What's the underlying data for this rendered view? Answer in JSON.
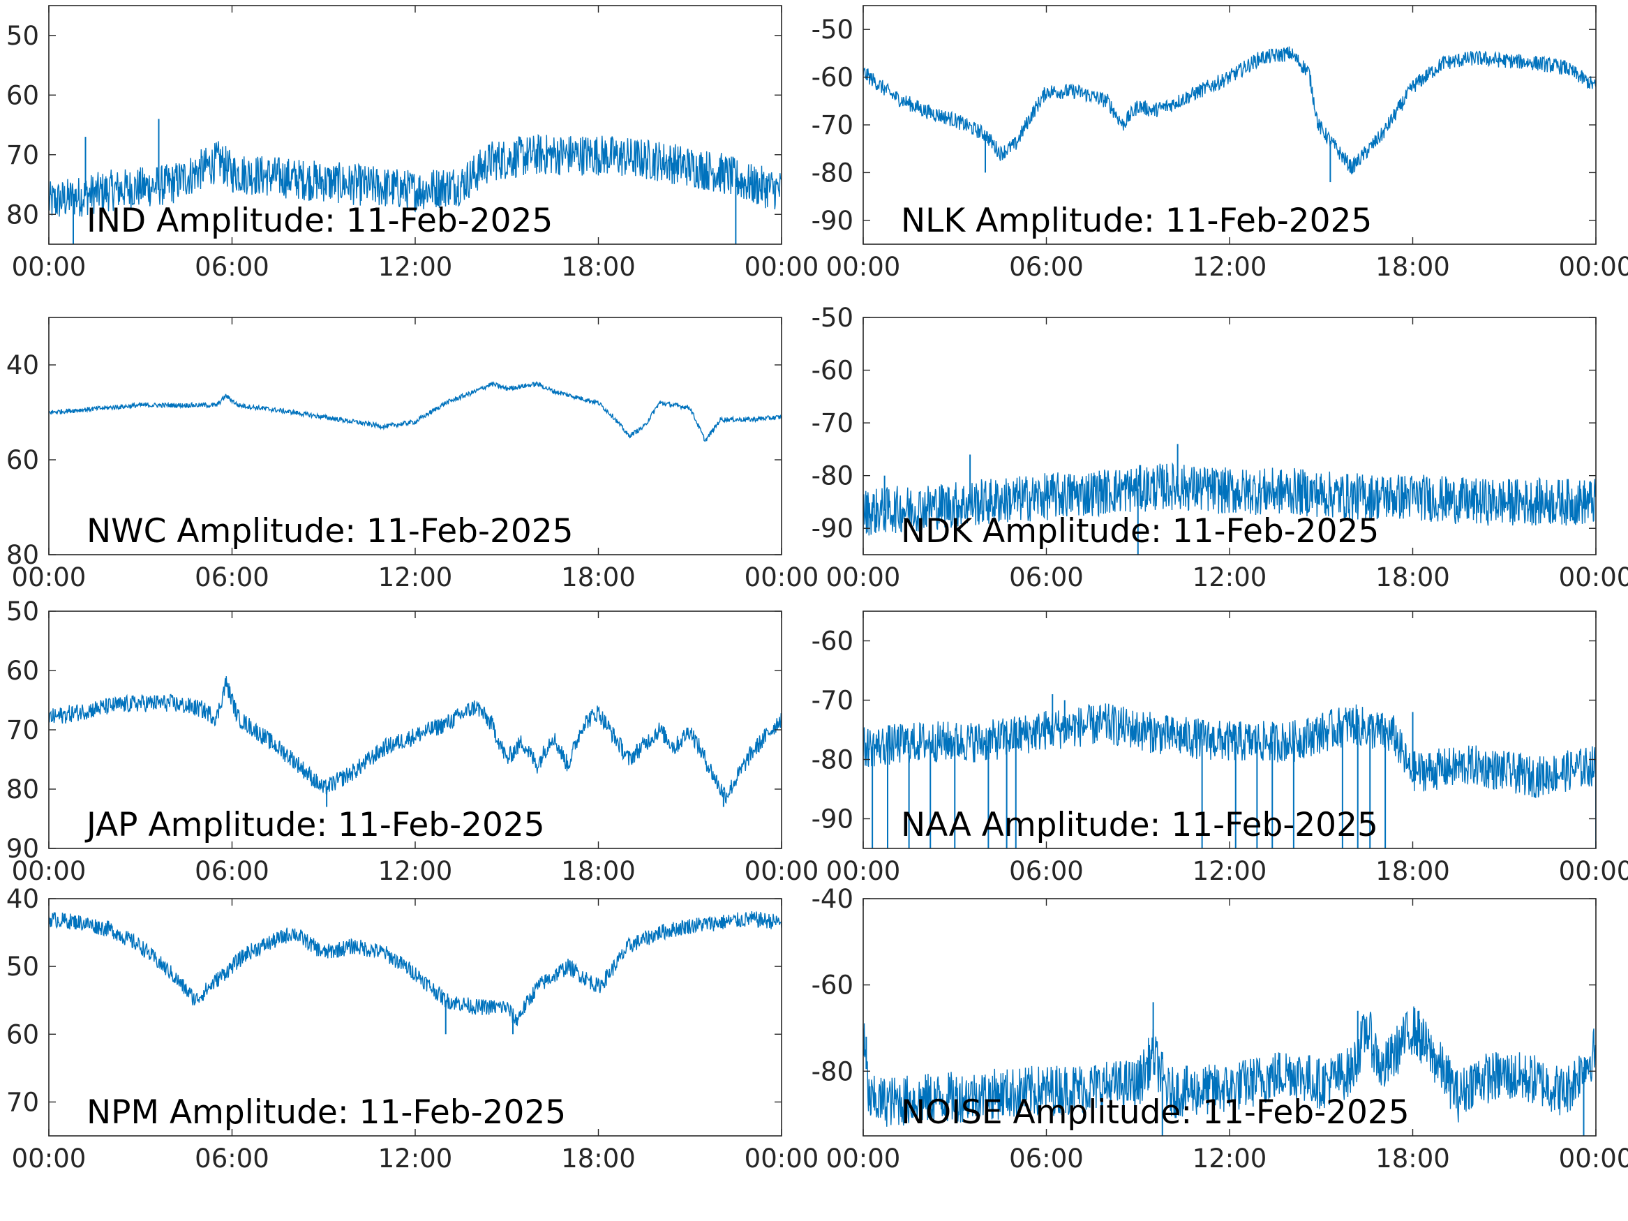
{
  "figure": {
    "line_color": "#0072BD",
    "axis_color": "#262626",
    "x_tick_labels": [
      "00:00",
      "06:00",
      "12:00",
      "18:00",
      "00:00"
    ]
  },
  "chart_data": [
    {
      "type": "line",
      "station": "IND",
      "title": "IND Amplitude: 11-Feb-2025",
      "xlabel": "",
      "ylabel": "",
      "x_unit": "hours",
      "xlim": [
        0,
        24
      ],
      "ylim": [
        -85,
        -45
      ],
      "y_tick_values": [
        -50,
        -60,
        -70,
        -80
      ],
      "y_tick_labels": [
        "50",
        "60",
        "70",
        "80"
      ],
      "noise": 3.5,
      "spikes": [
        [
          3.6,
          -64
        ],
        [
          1.2,
          -67
        ],
        [
          22.5,
          -86
        ],
        [
          0.8,
          -86
        ]
      ],
      "series": [
        {
          "x": [
            0,
            2,
            4,
            5.6,
            6,
            8,
            10,
            12,
            13.5,
            14.5,
            16,
            18,
            20,
            22,
            23,
            24
          ],
          "y": [
            -78,
            -76,
            -75,
            -71,
            -73,
            -74,
            -75,
            -76,
            -75,
            -71,
            -70,
            -70,
            -71,
            -73,
            -75,
            -76
          ]
        }
      ]
    },
    {
      "type": "line",
      "station": "NLK",
      "title": "NLK Amplitude: 11-Feb-2025",
      "xlabel": "",
      "ylabel": "",
      "x_unit": "hours",
      "xlim": [
        0,
        24
      ],
      "ylim": [
        -95,
        -45
      ],
      "y_tick_values": [
        -50,
        -60,
        -70,
        -80,
        -90
      ],
      "y_tick_labels": [
        "-50",
        "-60",
        "-70",
        "-80",
        "-90"
      ],
      "noise": 1.6,
      "spikes": [
        [
          15.3,
          -82
        ],
        [
          4.0,
          -80
        ]
      ],
      "series": [
        {
          "x": [
            0,
            1,
            2,
            3,
            4,
            4.5,
            5,
            5.5,
            6,
            7,
            8,
            8.5,
            9,
            9.5,
            10,
            11,
            12,
            13,
            14,
            14.6,
            14.9,
            15.5,
            16,
            17,
            18,
            19,
            20,
            21,
            22,
            23,
            24
          ],
          "y": [
            -59,
            -64,
            -67,
            -69,
            -72,
            -76,
            -74,
            -68,
            -63,
            -63,
            -65,
            -70,
            -66,
            -67,
            -66,
            -63,
            -60,
            -56,
            -55,
            -59,
            -70,
            -75,
            -79,
            -72,
            -62,
            -57,
            -56,
            -56.5,
            -57,
            -58,
            -62
          ]
        }
      ]
    },
    {
      "type": "line",
      "station": "NWC",
      "title": "NWC Amplitude: 11-Feb-2025",
      "xlabel": "",
      "ylabel": "",
      "x_unit": "hours",
      "xlim": [
        0,
        24
      ],
      "ylim": [
        -80,
        -30
      ],
      "y_tick_values": [
        -40,
        -60,
        -80
      ],
      "y_tick_labels": [
        "40",
        "60",
        "80"
      ],
      "noise": 0.5,
      "spikes": [],
      "series": [
        {
          "x": [
            0,
            2,
            3,
            5.5,
            5.8,
            6.2,
            8,
            10,
            11,
            12,
            13,
            14,
            14.5,
            15,
            16,
            16.5,
            18,
            18.5,
            19,
            19.5,
            20,
            21,
            21.5,
            22,
            23,
            24
          ],
          "y": [
            -50,
            -49,
            -48.5,
            -48.5,
            -46.5,
            -48.5,
            -50,
            -52,
            -53,
            -52,
            -48,
            -45.5,
            -44,
            -45,
            -44,
            -45.5,
            -48,
            -51,
            -55,
            -53,
            -48,
            -49,
            -56,
            -51.5,
            -51.5,
            -51
          ]
        }
      ]
    },
    {
      "type": "line",
      "station": "NDK",
      "title": "NDK Amplitude: 11-Feb-2025",
      "xlabel": "",
      "ylabel": "",
      "x_unit": "hours",
      "xlim": [
        0,
        24
      ],
      "ylim": [
        -95,
        -50
      ],
      "y_tick_values": [
        -50,
        -60,
        -70,
        -80,
        -90
      ],
      "y_tick_labels": [
        "-50",
        "-60",
        "-70",
        "-80",
        "-90"
      ],
      "noise": 4.5,
      "spikes": [
        [
          0.7,
          -80
        ],
        [
          3.5,
          -76
        ],
        [
          10.3,
          -74
        ],
        [
          9.0,
          -95
        ]
      ],
      "series": [
        {
          "x": [
            0,
            2,
            4,
            6,
            8,
            10,
            12,
            14,
            16,
            18,
            20,
            22,
            24
          ],
          "y": [
            -87,
            -86,
            -85,
            -84,
            -83,
            -82,
            -83,
            -83,
            -84,
            -84,
            -85,
            -85,
            -85
          ]
        }
      ]
    },
    {
      "type": "line",
      "station": "JAP",
      "title": "JAP Amplitude: 11-Feb-2025",
      "xlabel": "",
      "ylabel": "",
      "x_unit": "hours",
      "xlim": [
        0,
        24
      ],
      "ylim": [
        -90,
        -50
      ],
      "y_tick_values": [
        -50,
        -60,
        -70,
        -80,
        -90
      ],
      "y_tick_labels": [
        "50",
        "60",
        "70",
        "80",
        "90"
      ],
      "noise": 1.5,
      "spikes": [
        [
          9.1,
          -83
        ],
        [
          22.1,
          -83
        ]
      ],
      "series": [
        {
          "x": [
            0,
            1,
            2,
            3,
            4,
            5,
            5.5,
            5.8,
            6.2,
            7,
            8,
            9,
            10,
            11,
            12,
            13,
            14,
            14.5,
            15,
            15.5,
            16,
            16.5,
            17,
            17.5,
            18,
            18.5,
            19,
            20,
            20.5,
            21,
            22,
            22.2,
            23,
            24
          ],
          "y": [
            -68,
            -67,
            -66,
            -65.5,
            -65.5,
            -66.5,
            -68,
            -62,
            -68,
            -71,
            -75,
            -80,
            -77,
            -73,
            -71,
            -69,
            -66,
            -69,
            -75,
            -72,
            -76,
            -71,
            -76,
            -69,
            -67,
            -71,
            -75,
            -70,
            -73,
            -70,
            -80,
            -81,
            -74,
            -68
          ]
        }
      ]
    },
    {
      "type": "line",
      "station": "NAA",
      "title": "NAA Amplitude: 11-Feb-2025",
      "xlabel": "",
      "ylabel": "",
      "x_unit": "hours",
      "xlim": [
        0,
        24
      ],
      "ylim": [
        -95,
        -55
      ],
      "y_tick_values": [
        -60,
        -70,
        -80,
        -90
      ],
      "y_tick_labels": [
        "-60",
        "-70",
        "-80",
        "-90"
      ],
      "noise": 3.5,
      "spikes": [
        [
          0.3,
          -95
        ],
        [
          0.8,
          -95
        ],
        [
          1.5,
          -95
        ],
        [
          2.2,
          -95
        ],
        [
          3.0,
          -95
        ],
        [
          4.1,
          -95
        ],
        [
          4.7,
          -95
        ],
        [
          5.0,
          -95
        ],
        [
          11.1,
          -95
        ],
        [
          12.2,
          -95
        ],
        [
          12.9,
          -95
        ],
        [
          13.4,
          -95
        ],
        [
          14.1,
          -95
        ],
        [
          15.7,
          -95
        ],
        [
          16.2,
          -95
        ],
        [
          16.6,
          -95
        ],
        [
          17.1,
          -95
        ],
        [
          6.2,
          -69
        ],
        [
          6.6,
          -70
        ],
        [
          18.0,
          -72
        ],
        [
          24.0,
          -95
        ]
      ],
      "series": [
        {
          "x": [
            0,
            2,
            4,
            6,
            8,
            10,
            12,
            14,
            16,
            17.4,
            17.9,
            18.2,
            20,
            22,
            24
          ],
          "y": [
            -78,
            -77,
            -77,
            -75,
            -74,
            -76,
            -77,
            -77,
            -74,
            -76,
            -82,
            -82,
            -81,
            -83,
            -81
          ]
        }
      ]
    },
    {
      "type": "line",
      "station": "NPM",
      "title": "NPM Amplitude: 11-Feb-2025",
      "xlabel": "",
      "ylabel": "",
      "x_unit": "hours",
      "xlim": [
        0,
        24
      ],
      "ylim": [
        -75,
        -40
      ],
      "y_tick_values": [
        -40,
        -50,
        -60,
        -70
      ],
      "y_tick_labels": [
        "40",
        "50",
        "60",
        "70"
      ],
      "noise": 1.2,
      "spikes": [
        [
          13.0,
          -60
        ],
        [
          15.2,
          -60
        ]
      ],
      "series": [
        {
          "x": [
            0,
            1,
            2,
            3,
            4,
            4.8,
            5.5,
            6.5,
            7.5,
            8,
            9,
            10,
            11,
            12,
            13,
            14,
            15,
            15.3,
            16,
            17,
            18,
            18.2,
            19,
            20,
            21,
            22,
            23,
            24
          ],
          "y": [
            -43,
            -43.5,
            -44.5,
            -47,
            -51,
            -55,
            -52,
            -48,
            -46,
            -45,
            -48,
            -47,
            -48,
            -51,
            -55,
            -56,
            -56,
            -58,
            -53,
            -50,
            -53,
            -52,
            -47,
            -45,
            -44,
            -43.5,
            -43,
            -43.5
          ]
        }
      ]
    },
    {
      "type": "line",
      "station": "NOISE",
      "title": "NOISE Amplitude: 11-Feb-2025",
      "xlabel": "",
      "ylabel": "",
      "x_unit": "hours",
      "xlim": [
        0,
        24
      ],
      "ylim": [
        -95,
        -40
      ],
      "y_tick_values": [
        -40,
        -60,
        -80
      ],
      "y_tick_labels": [
        "-40",
        "-60",
        "-80"
      ],
      "noise": 6,
      "spikes": [
        [
          9.5,
          -64
        ],
        [
          9.8,
          -95
        ],
        [
          16.2,
          -66
        ],
        [
          18.2,
          -66
        ],
        [
          23.6,
          -95
        ],
        [
          0.1,
          -72
        ]
      ],
      "series": [
        {
          "x": [
            0,
            0.2,
            1,
            3,
            5,
            7,
            9,
            9.5,
            10,
            12,
            13,
            14,
            15,
            16,
            16.5,
            17,
            18,
            19,
            19.5,
            20,
            21,
            22,
            23,
            24
          ],
          "y": [
            -72,
            -87,
            -87,
            -86,
            -85,
            -84,
            -83,
            -76,
            -85,
            -84,
            -82,
            -80,
            -83,
            -80,
            -70,
            -80,
            -70,
            -80,
            -86,
            -82,
            -81,
            -82,
            -85,
            -75
          ]
        }
      ]
    }
  ]
}
